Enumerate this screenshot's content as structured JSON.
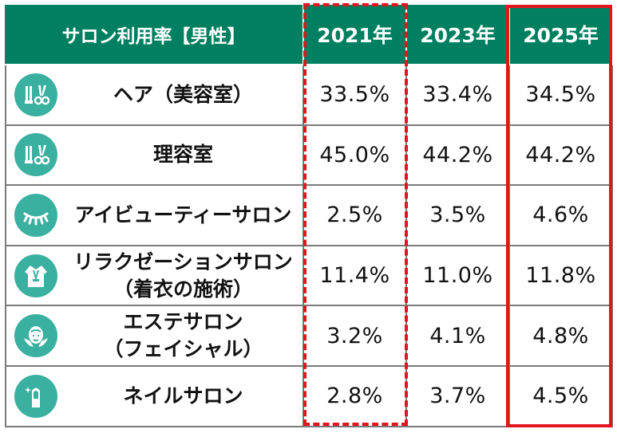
{
  "header": {
    "title": "サロン利用率【男性】",
    "years": [
      "2021年",
      "2023年",
      "2025年"
    ]
  },
  "rows": [
    {
      "label_lines": [
        "ヘア（美容室）"
      ],
      "icon": "hair-scissors-icon",
      "values": [
        "33.5%",
        "33.4%",
        "34.5%"
      ]
    },
    {
      "label_lines": [
        "理容室"
      ],
      "icon": "barber-scissors-icon",
      "values": [
        "45.0%",
        "44.2%",
        "44.2%"
      ]
    },
    {
      "label_lines": [
        "アイビューティーサロン"
      ],
      "icon": "eyelash-icon",
      "values": [
        "2.5%",
        "3.5%",
        "4.6%"
      ]
    },
    {
      "label_lines": [
        "リラクゼーションサロン",
        "（着衣の施術）"
      ],
      "icon": "robe-icon",
      "values": [
        "11.4%",
        "11.0%",
        "11.8%"
      ]
    },
    {
      "label_lines": [
        "エステサロン",
        "（フェイシャル）"
      ],
      "icon": "facial-icon",
      "values": [
        "3.2%",
        "4.1%",
        "4.8%"
      ]
    },
    {
      "label_lines": [
        "ネイルサロン"
      ],
      "icon": "nail-icon",
      "values": [
        "2.8%",
        "3.7%",
        "4.5%"
      ]
    }
  ],
  "colors": {
    "header_bg": "#008060",
    "icon_bg": "#3ab0a0",
    "highlight": "#e0161e",
    "border": "#7a7a7a"
  },
  "chart_data": {
    "type": "table",
    "title": "サロン利用率【男性】",
    "columns": [
      "2021年",
      "2023年",
      "2025年"
    ],
    "categories": [
      "ヘア（美容室）",
      "理容室",
      "アイビューティーサロン",
      "リラクゼーションサロン（着衣の施術）",
      "エステサロン（フェイシャル）",
      "ネイルサロン"
    ],
    "series": [
      {
        "name": "2021年",
        "values": [
          33.5,
          45.0,
          2.5,
          11.4,
          3.2,
          2.8
        ]
      },
      {
        "name": "2023年",
        "values": [
          33.4,
          44.2,
          3.5,
          11.0,
          4.1,
          3.7
        ]
      },
      {
        "name": "2025年",
        "values": [
          34.5,
          44.2,
          4.6,
          11.8,
          4.8,
          4.5
        ]
      }
    ],
    "unit": "%"
  }
}
